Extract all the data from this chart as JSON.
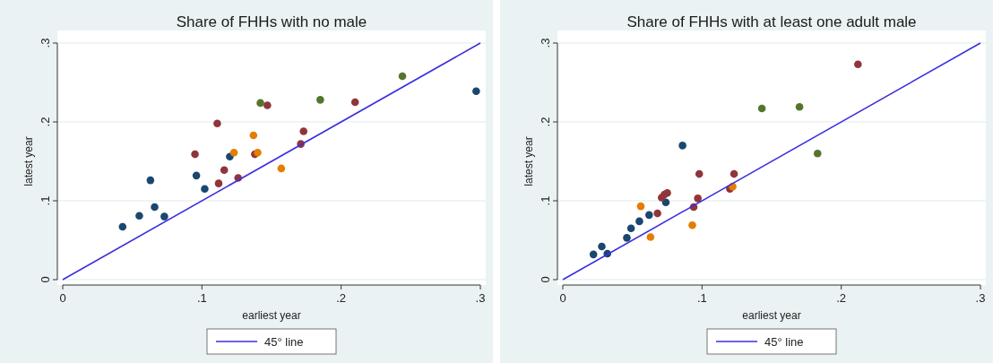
{
  "chart_data": [
    {
      "type": "scatter",
      "title": "Share of FHHs with no male",
      "xlabel": "earliest year",
      "ylabel": "latest year",
      "xlim": [
        0,
        0.3
      ],
      "ylim": [
        0,
        0.3
      ],
      "xticks": [
        {
          "value": 0,
          "label": "0"
        },
        {
          "value": 0.1,
          "label": ".1"
        },
        {
          "value": 0.2,
          "label": ".2"
        },
        {
          "value": 0.3,
          "label": ".3"
        }
      ],
      "yticks": [
        {
          "value": 0,
          "label": "0"
        },
        {
          "value": 0.1,
          "label": ".1"
        },
        {
          "value": 0.2,
          "label": ".2"
        },
        {
          "value": 0.3,
          "label": ".3"
        }
      ],
      "grid": "y",
      "legend": "bottom",
      "marker": "circle",
      "series": [
        {
          "color": "#1a476f",
          "x": [
            0.043,
            0.055,
            0.063,
            0.066,
            0.073,
            0.096,
            0.102,
            0.12,
            0.297
          ],
          "values": [
            0.067,
            0.081,
            0.126,
            0.092,
            0.08,
            0.132,
            0.115,
            0.156,
            0.239
          ]
        },
        {
          "color": "#90353b",
          "x": [
            0.095,
            0.111,
            0.112,
            0.116,
            0.126,
            0.138,
            0.147,
            0.171,
            0.173,
            0.21
          ],
          "values": [
            0.159,
            0.198,
            0.122,
            0.139,
            0.129,
            0.159,
            0.221,
            0.172,
            0.188,
            0.225
          ]
        },
        {
          "color": "#e37e00",
          "x": [
            0.123,
            0.137,
            0.14,
            0.157
          ],
          "values": [
            0.161,
            0.183,
            0.161,
            0.141
          ]
        },
        {
          "color": "#55752f",
          "x": [
            0.142,
            0.185,
            0.244
          ],
          "values": [
            0.224,
            0.228,
            0.258
          ]
        },
        {
          "type": "line",
          "name": "45° line",
          "color": "#3b2fe0",
          "x": [
            0,
            0.3
          ],
          "values": [
            0,
            0.3
          ],
          "marker": "none"
        }
      ]
    },
    {
      "type": "scatter",
      "title": "Share of FHHs with at least one adult male",
      "xlabel": "earliest year",
      "ylabel": "latest year",
      "xlim": [
        0,
        0.3
      ],
      "ylim": [
        0,
        0.3
      ],
      "xticks": [
        {
          "value": 0,
          "label": "0"
        },
        {
          "value": 0.1,
          "label": ".1"
        },
        {
          "value": 0.2,
          "label": ".2"
        },
        {
          "value": 0.3,
          "label": ".3"
        }
      ],
      "yticks": [
        {
          "value": 0,
          "label": "0"
        },
        {
          "value": 0.1,
          "label": ".1"
        },
        {
          "value": 0.2,
          "label": ".2"
        },
        {
          "value": 0.3,
          "label": ".3"
        }
      ],
      "grid": "y",
      "legend": "bottom",
      "marker": "circle",
      "series": [
        {
          "color": "#1a476f",
          "x": [
            0.022,
            0.028,
            0.032,
            0.046,
            0.049,
            0.055,
            0.062,
            0.074,
            0.086
          ],
          "values": [
            0.032,
            0.042,
            0.033,
            0.053,
            0.065,
            0.074,
            0.082,
            0.098,
            0.17
          ]
        },
        {
          "color": "#90353b",
          "x": [
            0.068,
            0.071,
            0.073,
            0.075,
            0.094,
            0.097,
            0.098,
            0.12,
            0.123,
            0.212
          ],
          "values": [
            0.084,
            0.104,
            0.108,
            0.11,
            0.092,
            0.103,
            0.134,
            0.115,
            0.134,
            0.273
          ]
        },
        {
          "color": "#e37e00",
          "x": [
            0.056,
            0.063,
            0.093,
            0.122
          ],
          "values": [
            0.093,
            0.054,
            0.069,
            0.118
          ]
        },
        {
          "color": "#55752f",
          "x": [
            0.143,
            0.17,
            0.183
          ],
          "values": [
            0.217,
            0.219,
            0.16
          ]
        },
        {
          "type": "line",
          "name": "45° line",
          "color": "#3b2fe0",
          "x": [
            0,
            0.3
          ],
          "values": [
            0,
            0.3
          ],
          "marker": "none"
        }
      ]
    }
  ]
}
